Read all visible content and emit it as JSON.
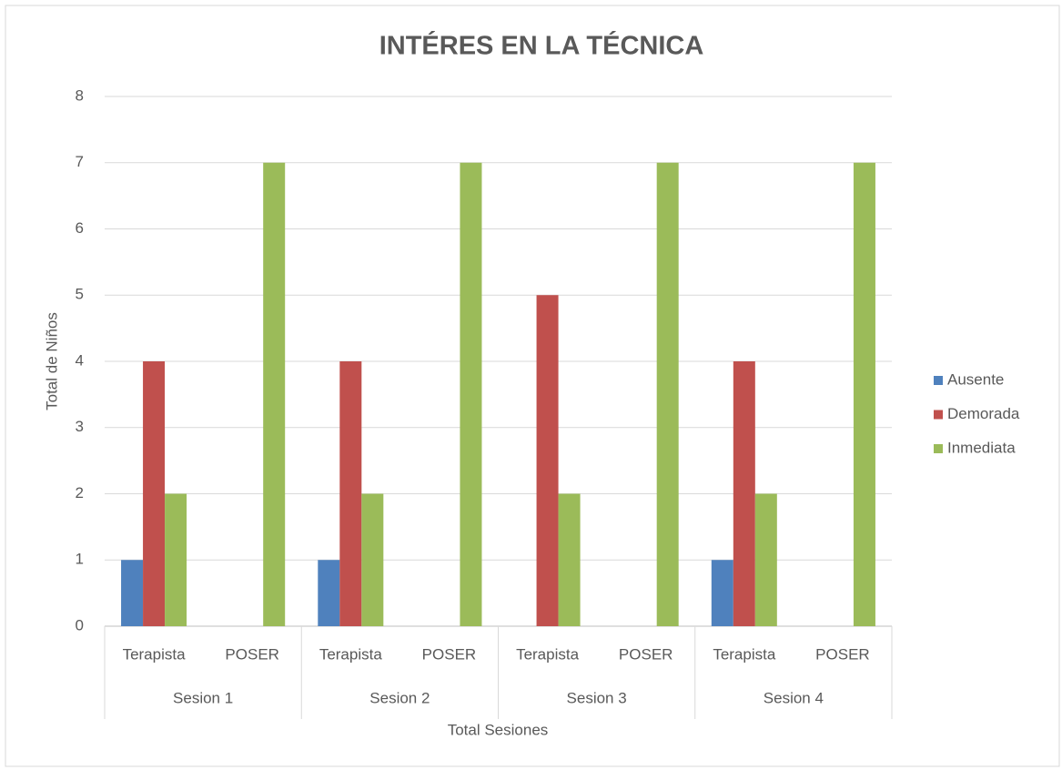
{
  "chart_data": {
    "type": "bar",
    "title": "INTÉRES EN LA TÉCNICA",
    "xlabel": "Total Sesiones",
    "ylabel": "Total de Niños",
    "categories": [
      "Terapista",
      "POSER",
      "Terapista",
      "POSER",
      "Terapista",
      "POSER",
      "Terapista",
      "POSER"
    ],
    "groups": [
      "Sesion 1",
      "Sesion 2",
      "Sesion 3",
      "Sesion 4"
    ],
    "series": [
      {
        "name": "Ausente",
        "color": "#4f81bd",
        "values": [
          1,
          0,
          1,
          0,
          0,
          0,
          1,
          0
        ]
      },
      {
        "name": "Demorada",
        "color": "#c0504d",
        "values": [
          4,
          0,
          4,
          0,
          5,
          0,
          4,
          0
        ]
      },
      {
        "name": "Inmediata",
        "color": "#9bbb59",
        "values": [
          2,
          7,
          2,
          7,
          2,
          7,
          2,
          7
        ]
      }
    ],
    "ylim": [
      0,
      8
    ],
    "yticks": [
      0,
      1,
      2,
      3,
      4,
      5,
      6,
      7,
      8
    ],
    "grid": true,
    "legend": "right"
  }
}
